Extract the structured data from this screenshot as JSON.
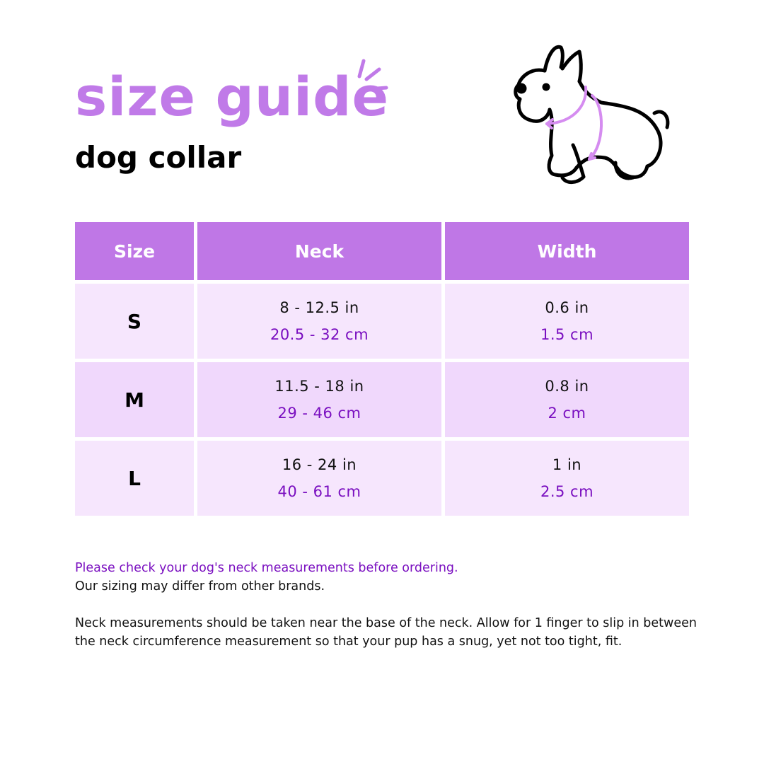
{
  "header": {
    "title": "size guide",
    "subtitle": "dog collar"
  },
  "illustration": {
    "icon": "french-bulldog-with-collar-arrows",
    "accent_color": "#d58cf0"
  },
  "colors": {
    "header_bg": "#bf77e6",
    "row_light": "#f6e6fd",
    "row_dark": "#f0d8fc",
    "metric_text": "#7a0fc0"
  },
  "table": {
    "columns": [
      "Size",
      "Neck",
      "Width"
    ],
    "rows": [
      {
        "size": "S",
        "neck_in": "8 - 12.5 in",
        "neck_cm": "20.5 - 32 cm",
        "width_in": "0.6 in",
        "width_cm": "1.5 cm"
      },
      {
        "size": "M",
        "neck_in": "11.5 - 18 in",
        "neck_cm": "29 - 46 cm",
        "width_in": "0.8 in",
        "width_cm": "2 cm"
      },
      {
        "size": "L",
        "neck_in": "16 - 24 in",
        "neck_cm": "40 - 61 cm",
        "width_in": "1 in",
        "width_cm": "2.5 cm"
      }
    ]
  },
  "notes": {
    "highlight": "Please check your dog's neck measurements before ordering.",
    "line2": "Our sizing may differ from other brands.",
    "paragraph": "Neck measurements should be taken near the base of the neck. Allow for 1 finger to slip in between the neck circumference measurement so that your pup has a snug, yet not too tight, fit."
  }
}
